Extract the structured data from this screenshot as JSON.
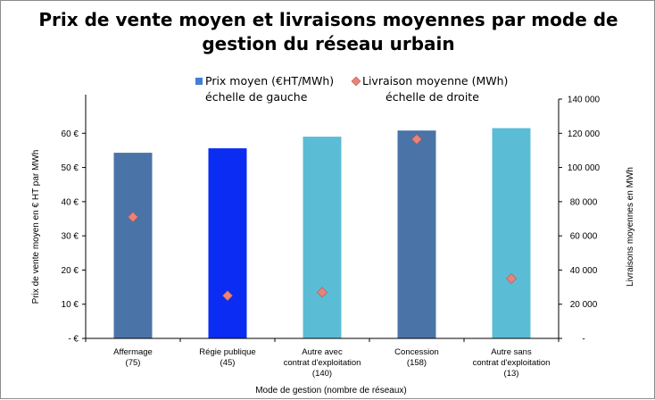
{
  "chart_data": {
    "type": "bar",
    "title": "Prix de vente moyen et livraisons moyennes par mode de gestion du réseau urbain",
    "title_lines": [
      "Prix de vente moyen et livraisons moyennes par mode de",
      "gestion du réseau urbain"
    ],
    "categories": [
      [
        "Affermage",
        "(75)"
      ],
      [
        "Régie publique",
        "(45)"
      ],
      [
        "Autre avec",
        "contrat d'exploitation",
        "(140)"
      ],
      [
        "Concession",
        "(158)"
      ],
      [
        "Autre sans",
        "contrat d'exploitation",
        "(13)"
      ]
    ],
    "series": [
      {
        "name": "Prix moyen (€HT/MWh)",
        "legend_sub": "échelle de gauche",
        "kind": "bar",
        "axis": "left",
        "values": [
          54.3,
          55.6,
          59.0,
          60.8,
          61.5
        ],
        "colors": [
          "#4a74a8",
          "#0b2cf2",
          "#5bbcd6",
          "#4a74a8",
          "#5bbcd6"
        ]
      },
      {
        "name": "Livraison moyenne (MWh)",
        "legend_sub": "échelle de droite",
        "kind": "scatter",
        "axis": "right",
        "values": [
          71000,
          25000,
          27000,
          116500,
          35000
        ],
        "color": "#e8847a"
      }
    ],
    "xlabel": "Mode de gestion (nombre de réseaux)",
    "ylabel": "Prix de vente moyen en € HT par MWh",
    "y2label": "Livraisons moyennes en MWh",
    "ylim": [
      0,
      70
    ],
    "y2lim": [
      0,
      140000
    ],
    "yticks": [
      0,
      10,
      20,
      30,
      40,
      50,
      60
    ],
    "ytick_labels": [
      "- €",
      "10 €",
      "20 €",
      "30 €",
      "40 €",
      "50 €",
      "60 €"
    ],
    "y2ticks": [
      0,
      20000,
      40000,
      60000,
      80000,
      100000,
      120000,
      140000
    ],
    "y2tick_labels": [
      "-",
      "20 000",
      "40 000",
      "60 000",
      "80 000",
      "100 000",
      "120 000",
      "140 000"
    ],
    "legend_colors": {
      "bar": "#3f7fd6",
      "marker": "#e8847a"
    },
    "grid": false,
    "legend_position": "top"
  }
}
